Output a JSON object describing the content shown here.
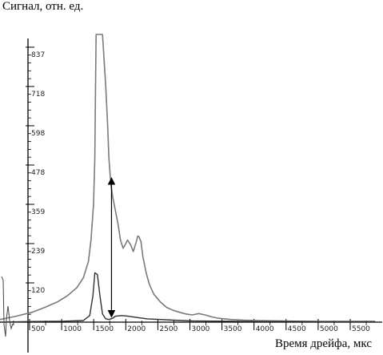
{
  "chart_data": {
    "type": "line",
    "ylabel": "Сигнал,  отн. ед.",
    "xlabel": "Время дрейфа,  мкс",
    "xlim": [
      0,
      5850
    ],
    "ylim": [
      0,
      900
    ],
    "x_ticks": [
      500,
      1000,
      1500,
      2000,
      2500,
      3000,
      3500,
      4000,
      4500,
      5000,
      5500
    ],
    "y_ticks": [
      120,
      239,
      359,
      478,
      598,
      718,
      837
    ],
    "series": [
      {
        "color": "#7a7a7a",
        "x": [
          -150,
          0,
          100,
          250,
          500,
          700,
          900,
          1050,
          1200,
          1300,
          1380,
          1420,
          1460,
          1480,
          1490,
          1500,
          1600,
          1650,
          1680,
          1700,
          1730,
          1760,
          1800,
          1840,
          1880,
          1920,
          1950,
          1990,
          2040,
          2080,
          2120,
          2150,
          2170,
          2200,
          2230,
          2280,
          2330,
          2400,
          2500,
          2600,
          2700,
          2800,
          2900,
          3000,
          3100,
          3200,
          3300,
          3400,
          3600,
          3800,
          4000,
          4300,
          4600,
          5000,
          5400,
          5850
        ],
        "y": [
          0,
          8,
          12,
          18,
          30,
          45,
          62,
          80,
          105,
          135,
          185,
          250,
          360,
          500,
          700,
          900,
          900,
          720,
          600,
          500,
          420,
          380,
          340,
          300,
          250,
          225,
          235,
          250,
          235,
          215,
          240,
          262,
          260,
          245,
          200,
          150,
          115,
          85,
          62,
          45,
          36,
          30,
          25,
          22,
          26,
          22,
          16,
          12,
          8,
          6,
          5,
          4,
          3,
          2,
          2,
          2
        ]
      },
      {
        "color": "#303030",
        "x": [
          -150,
          0,
          500,
          1000,
          1300,
          1400,
          1450,
          1480,
          1520,
          1560,
          1600,
          1650,
          1700,
          1760,
          1800,
          1900,
          2000,
          2150,
          2300,
          2500,
          2700,
          3000,
          3500,
          4000,
          4500,
          5000,
          5500,
          5850
        ],
        "y": [
          0,
          0,
          2,
          3,
          5,
          20,
          80,
          150,
          145,
          80,
          25,
          10,
          8,
          12,
          18,
          20,
          18,
          14,
          10,
          8,
          6,
          4,
          3,
          2,
          2,
          2,
          2,
          2
        ]
      }
    ],
    "annotation": {
      "type": "double-arrow",
      "x": 1740,
      "y_from": 25,
      "y_to": 430
    }
  }
}
